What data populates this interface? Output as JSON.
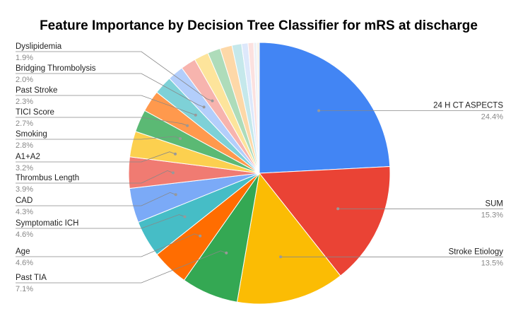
{
  "chart_data": {
    "type": "pie",
    "title": "Feature Importance by Decision Tree Classifier for mRS at discharge",
    "slices": [
      {
        "label": "24 H CT ASPECTS",
        "value": 24.4,
        "percent_label": "24.4%",
        "color": "#4285f4"
      },
      {
        "label": "SUM",
        "value": 15.3,
        "percent_label": "15.3%",
        "color": "#ea4335"
      },
      {
        "label": "Stroke Etiology",
        "value": 13.5,
        "percent_label": "13.5%",
        "color": "#fbbc04"
      },
      {
        "label": "Past TIA",
        "value": 7.1,
        "percent_label": "7.1%",
        "color": "#34a853"
      },
      {
        "label": "Age",
        "value": 4.6,
        "percent_label": "4.6%",
        "color": "#ff6d01"
      },
      {
        "label": "Symptomatic ICH",
        "value": 4.6,
        "percent_label": "4.6%",
        "color": "#46bdc6"
      },
      {
        "label": "CAD",
        "value": 4.3,
        "percent_label": "4.3%",
        "color": "#7baaf7"
      },
      {
        "label": "Thrombus Length",
        "value": 3.9,
        "percent_label": "3.9%",
        "color": "#f07b72"
      },
      {
        "label": "A1+A2",
        "value": 3.2,
        "percent_label": "3.2%",
        "color": "#fcd04f"
      },
      {
        "label": "Smoking",
        "value": 2.8,
        "percent_label": "2.8%",
        "color": "#5bb974"
      },
      {
        "label": "TICI Score",
        "value": 2.7,
        "percent_label": "2.7%",
        "color": "#ff994d"
      },
      {
        "label": "Past Stroke",
        "value": 2.3,
        "percent_label": "2.3%",
        "color": "#7ed1d7"
      },
      {
        "label": "Bridging Thrombolysis",
        "value": 2.0,
        "percent_label": "2.0%",
        "color": "#b3cefb"
      },
      {
        "label": "Dyslipidemia",
        "value": 1.9,
        "percent_label": "1.9%",
        "color": "#f7b4ae"
      },
      {
        "label": "",
        "value": 1.8,
        "percent_label": "",
        "color": "#fde49b"
      },
      {
        "label": "",
        "value": 1.6,
        "percent_label": "",
        "color": "#aedcba"
      },
      {
        "label": "",
        "value": 1.5,
        "percent_label": "",
        "color": "#fdd8a8"
      },
      {
        "label": "",
        "value": 1.2,
        "percent_label": "",
        "color": "#c5e8eb"
      },
      {
        "label": "",
        "value": 0.8,
        "percent_label": "",
        "color": "#dde8fb"
      },
      {
        "label": "",
        "value": 0.7,
        "percent_label": "",
        "color": "#fbe1df"
      },
      {
        "label": "",
        "value": 0.4,
        "percent_label": "",
        "color": "#eef1f6"
      },
      {
        "label": "",
        "value": 0.3,
        "percent_label": "",
        "color": "#f5f0e4"
      }
    ],
    "legend": "none"
  }
}
